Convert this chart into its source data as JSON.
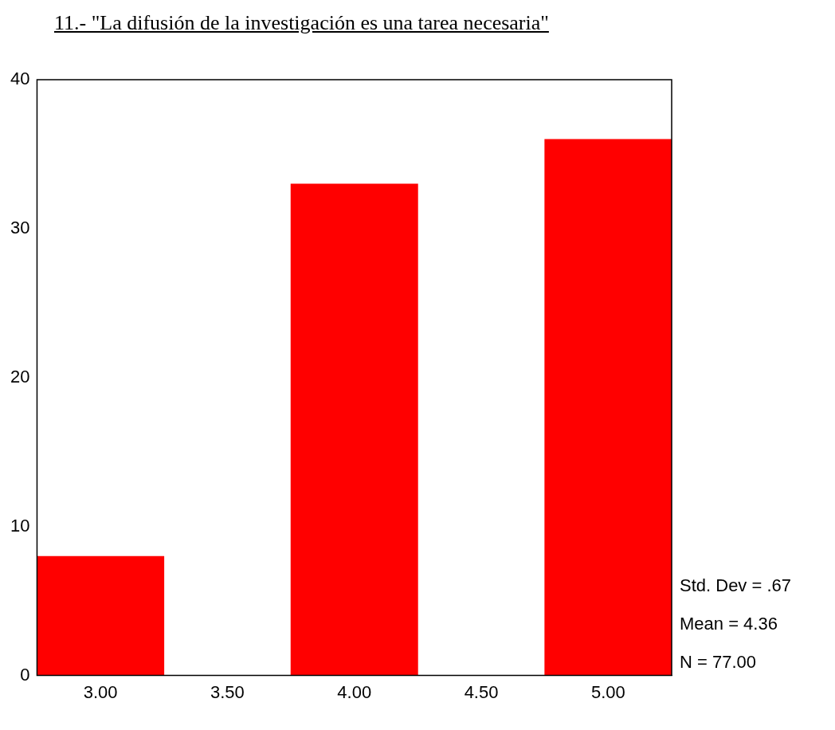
{
  "chart_data": {
    "type": "histogram",
    "title": "11.- \"La difusión de la investigación es una tarea necesaria\"",
    "bins": [
      2.75,
      3.25,
      3.75,
      4.25,
      4.75,
      5.25
    ],
    "values": [
      8,
      0,
      33,
      0,
      36
    ],
    "color": "#ff0000",
    "xlim": [
      2.75,
      5.25
    ],
    "xticks": [
      {
        "value": 3,
        "label": "3.00"
      },
      {
        "value": 3.5,
        "label": "3.50"
      },
      {
        "value": 4,
        "label": "4.00"
      },
      {
        "value": 4.5,
        "label": "4.50"
      },
      {
        "value": 5,
        "label": "5.00"
      }
    ],
    "ylim": [
      0,
      40
    ],
    "yticks": [
      0,
      10,
      20,
      30,
      40
    ],
    "grid": false,
    "legend": false,
    "annotations": [
      "Std. Dev = .67",
      "Mean = 4.36",
      "N = 77.00"
    ]
  }
}
